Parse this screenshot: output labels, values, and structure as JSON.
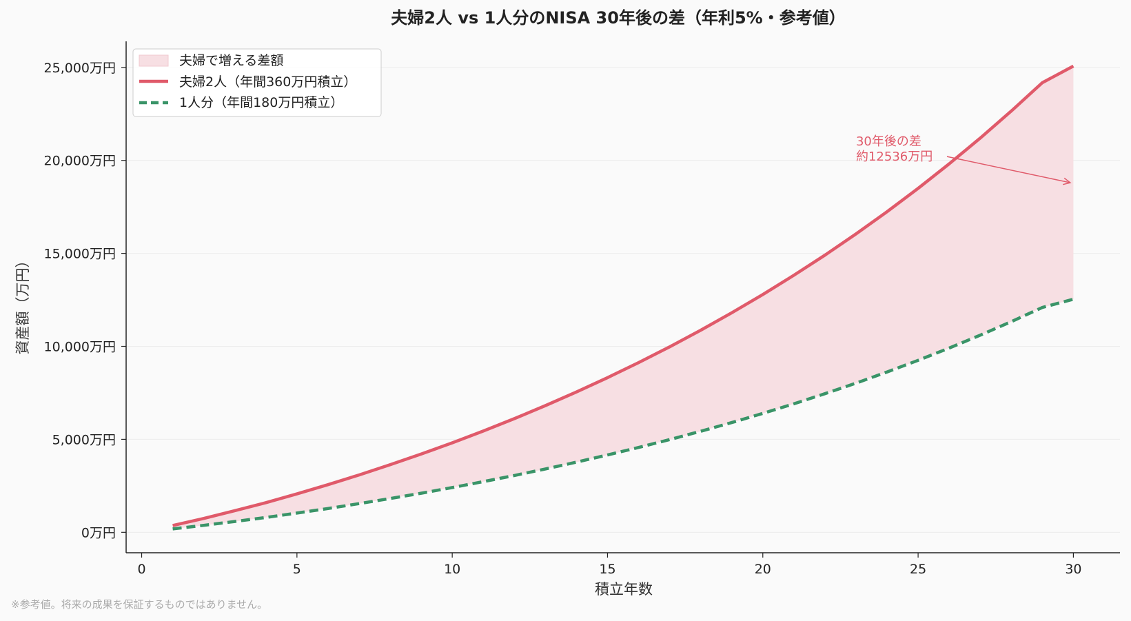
{
  "chart_data": {
    "type": "line",
    "title": "夫婦2人 vs 1人分のNISA 30年後の差（年利5%・参考値）",
    "xlabel": "積立年数",
    "ylabel": "資産額（万円）",
    "xlim": [
      -0.5,
      31.5
    ],
    "ylim": [
      -1100,
      26400
    ],
    "x_ticks": [
      0,
      5,
      10,
      15,
      20,
      25,
      30
    ],
    "x_tick_labels": [
      "0",
      "5",
      "10",
      "15",
      "20",
      "25",
      "30"
    ],
    "y_ticks": [
      0,
      5000,
      10000,
      15000,
      20000,
      25000
    ],
    "y_tick_labels": [
      "0万円",
      "5,000万円",
      "10,000万円",
      "15,000万円",
      "20,000万円",
      "25,000万円"
    ],
    "grid": "y-major",
    "legend_position": "top-left",
    "x": [
      1,
      2,
      3,
      4,
      5,
      6,
      7,
      8,
      9,
      10,
      11,
      12,
      13,
      14,
      15,
      16,
      17,
      18,
      19,
      20,
      21,
      22,
      23,
      24,
      25,
      26,
      27,
      28,
      29,
      30
    ],
    "series": [
      {
        "name": "夫婦2人（年間360万円積立）",
        "color": "#e05a6a",
        "style": "solid",
        "values": [
          369,
          747,
          1164,
          1595,
          2066,
          2562,
          3083,
          3631,
          4207,
          4811,
          5446,
          6112,
          6811,
          7545,
          8316,
          9125,
          9975,
          10867,
          11804,
          12788,
          13821,
          14905,
          16044,
          17240,
          18495,
          19814,
          21198,
          22652,
          24178,
          25071
        ]
      },
      {
        "name": "1人分（年間180万円積立）",
        "color": "#3a9468",
        "style": "dashed",
        "values": [
          184,
          374,
          582,
          798,
          1033,
          1281,
          1542,
          1815,
          2103,
          2406,
          2723,
          3056,
          3406,
          3773,
          4158,
          4563,
          4987,
          5434,
          5902,
          6394,
          6910,
          7453,
          8022,
          8620,
          9248,
          9907,
          10599,
          11326,
          12089,
          12535
        ]
      }
    ],
    "fill_between": {
      "name": "夫婦で増える差額",
      "color": "#f7dfe3"
    },
    "annotation": {
      "text_line1": "30年後の差",
      "text_line2": "約12536万円",
      "color": "#e05a6a",
      "text_at": [
        23.0,
        20800
      ],
      "arrow_to": [
        29.9,
        18800
      ]
    },
    "footnote": "※参考値。将来の成果を保証するものではありません。"
  }
}
